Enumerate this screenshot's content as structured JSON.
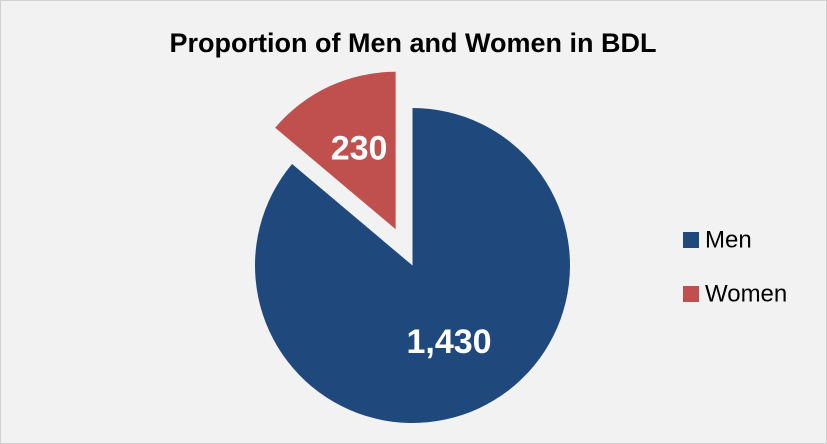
{
  "chart_data": {
    "type": "pie",
    "title": "Proportion of Men and Women in BDL",
    "categories": [
      "Men",
      "Women"
    ],
    "values": [
      1430,
      230
    ],
    "value_labels": [
      "1,430",
      "230"
    ],
    "colors": [
      "#1f497d",
      "#c0504d"
    ],
    "legend": "right"
  }
}
